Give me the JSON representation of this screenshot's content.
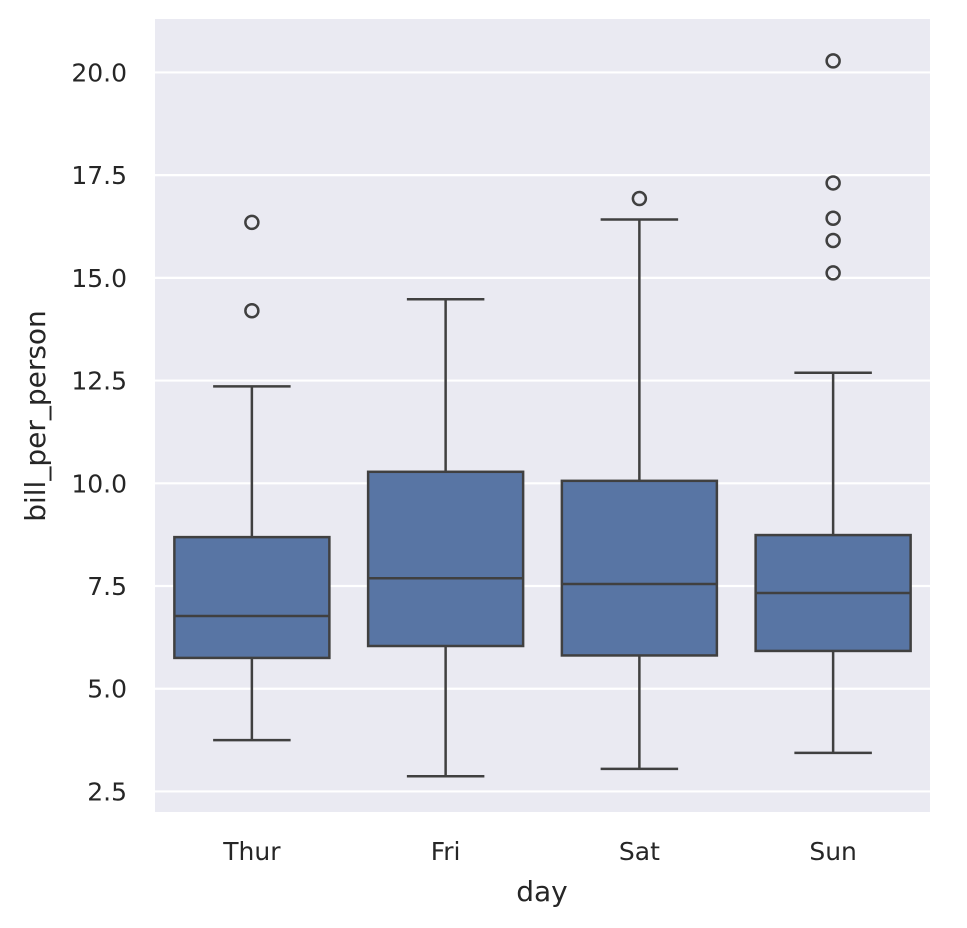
{
  "chart_data": {
    "type": "box",
    "xlabel": "day",
    "ylabel": "bill_per_person",
    "categories": [
      "Thur",
      "Fri",
      "Sat",
      "Sun"
    ],
    "ylim": [
      2.0,
      21.3
    ],
    "yticks": [
      2.5,
      5.0,
      7.5,
      10.0,
      12.5,
      15.0,
      17.5,
      20.0
    ],
    "ytick_labels": [
      "2.5",
      "5.0",
      "7.5",
      "10.0",
      "12.5",
      "15.0",
      "17.5",
      "20.0"
    ],
    "grid": true,
    "box_color": "#5875a4",
    "line_color": "#404040",
    "background_color": "#eaeaf2",
    "boxes": [
      {
        "category": "Thur",
        "whisker_low": 3.75,
        "q1": 5.75,
        "median": 6.77,
        "q3": 8.69,
        "whisker_high": 12.36,
        "outliers": [
          14.2,
          16.35
        ]
      },
      {
        "category": "Fri",
        "whisker_low": 2.87,
        "q1": 6.04,
        "median": 7.69,
        "q3": 10.28,
        "whisker_high": 14.48,
        "outliers": []
      },
      {
        "category": "Sat",
        "whisker_low": 3.05,
        "q1": 5.81,
        "median": 7.55,
        "q3": 10.06,
        "whisker_high": 16.42,
        "outliers": [
          16.93
        ]
      },
      {
        "category": "Sun",
        "whisker_low": 3.44,
        "q1": 5.92,
        "median": 7.33,
        "q3": 8.74,
        "whisker_high": 12.69,
        "outliers": [
          15.12,
          15.91,
          16.45,
          17.31,
          20.28
        ]
      }
    ]
  }
}
